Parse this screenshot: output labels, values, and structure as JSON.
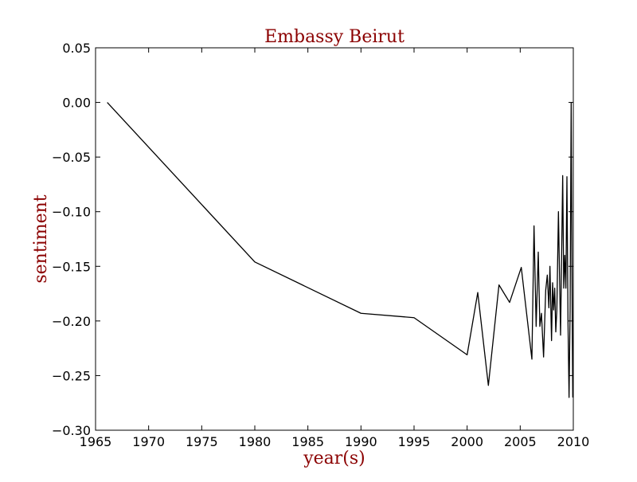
{
  "chart_data": {
    "type": "line",
    "title": "Embassy Beirut",
    "xlabel": "year(s)",
    "ylabel": "sentiment",
    "xlim": [
      1965,
      2010
    ],
    "ylim": [
      -0.3,
      0.05
    ],
    "x_ticks": [
      1965,
      1970,
      1975,
      1980,
      1985,
      1990,
      1995,
      2000,
      2005,
      2010
    ],
    "y_ticks": [
      0.05,
      0.0,
      -0.05,
      -0.1,
      -0.15,
      -0.2,
      -0.25,
      -0.3
    ],
    "x_tick_labels": [
      "1965",
      "1970",
      "1975",
      "1980",
      "1985",
      "1990",
      "1995",
      "2000",
      "2005",
      "2010"
    ],
    "y_tick_labels": [
      "0.05",
      "0.00",
      "−0.05",
      "−0.10",
      "−0.15",
      "−0.20",
      "−0.25",
      "−0.30"
    ],
    "grid": false,
    "title_color": "#8b0000",
    "label_color": "#8b0000",
    "line_color": "#000000",
    "series": [
      {
        "x": [
          1966.1,
          1980.0,
          1990.0,
          1995.0,
          2000.0,
          2001.0,
          2002.0,
          2003.0,
          2004.0,
          2005.1,
          2006.1,
          2006.3,
          2006.5,
          2006.7,
          2006.85,
          2007.0,
          2007.2,
          2007.4,
          2007.55,
          2007.7,
          2007.8,
          2007.95,
          2008.05,
          2008.15,
          2008.25,
          2008.35,
          2008.45,
          2008.6,
          2008.8,
          2009.0,
          2009.1,
          2009.2,
          2009.3,
          2009.4,
          2009.5,
          2009.6,
          2009.7,
          2009.8,
          2009.9,
          2009.95
        ],
        "y": [
          0.0,
          -0.146,
          -0.193,
          -0.197,
          -0.231,
          -0.174,
          -0.259,
          -0.167,
          -0.183,
          -0.151,
          -0.235,
          -0.113,
          -0.205,
          -0.137,
          -0.205,
          -0.193,
          -0.233,
          -0.172,
          -0.158,
          -0.188,
          -0.15,
          -0.218,
          -0.165,
          -0.19,
          -0.17,
          -0.21,
          -0.19,
          -0.1,
          -0.213,
          -0.067,
          -0.17,
          -0.14,
          -0.17,
          -0.068,
          -0.2,
          -0.27,
          -0.19,
          -0.0,
          -0.2,
          -0.27
        ]
      }
    ]
  }
}
